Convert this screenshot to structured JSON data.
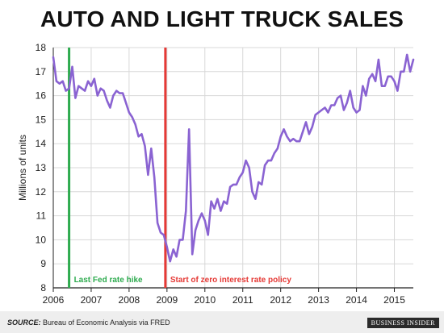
{
  "chart_data": {
    "type": "line",
    "title": "AUTO AND LIGHT TRUCK SALES",
    "xlabel": "",
    "ylabel": "Millions of units",
    "xlim": [
      2006.0,
      2015.5
    ],
    "ylim": [
      8,
      18
    ],
    "x_ticks": [
      "2006",
      "2007",
      "2008",
      "2009",
      "2010",
      "2011",
      "2012",
      "2013",
      "2014",
      "2015"
    ],
    "y_ticks": [
      "8",
      "9",
      "10",
      "11",
      "12",
      "13",
      "14",
      "15",
      "16",
      "17",
      "18"
    ],
    "grid": true,
    "series": [
      {
        "color": "#8a63d2",
        "x": [
          2006.0,
          2006.083,
          2006.167,
          2006.25,
          2006.333,
          2006.417,
          2006.5,
          2006.583,
          2006.667,
          2006.75,
          2006.833,
          2006.917,
          2007.0,
          2007.083,
          2007.167,
          2007.25,
          2007.333,
          2007.417,
          2007.5,
          2007.583,
          2007.667,
          2007.75,
          2007.833,
          2007.917,
          2008.0,
          2008.083,
          2008.167,
          2008.25,
          2008.333,
          2008.417,
          2008.5,
          2008.583,
          2008.667,
          2008.75,
          2008.833,
          2008.917,
          2009.0,
          2009.083,
          2009.167,
          2009.25,
          2009.333,
          2009.417,
          2009.5,
          2009.583,
          2009.667,
          2009.75,
          2009.833,
          2009.917,
          2010.0,
          2010.083,
          2010.167,
          2010.25,
          2010.333,
          2010.417,
          2010.5,
          2010.583,
          2010.667,
          2010.75,
          2010.833,
          2010.917,
          2011.0,
          2011.083,
          2011.167,
          2011.25,
          2011.333,
          2011.417,
          2011.5,
          2011.583,
          2011.667,
          2011.75,
          2011.833,
          2011.917,
          2012.0,
          2012.083,
          2012.167,
          2012.25,
          2012.333,
          2012.417,
          2012.5,
          2012.583,
          2012.667,
          2012.75,
          2012.833,
          2012.917,
          2013.0,
          2013.083,
          2013.167,
          2013.25,
          2013.333,
          2013.417,
          2013.5,
          2013.583,
          2013.667,
          2013.75,
          2013.833,
          2013.917,
          2014.0,
          2014.083,
          2014.167,
          2014.25,
          2014.333,
          2014.417,
          2014.5,
          2014.583,
          2014.667,
          2014.75,
          2014.833,
          2014.917,
          2015.0,
          2015.083,
          2015.167,
          2015.25,
          2015.333,
          2015.417,
          2015.5
        ],
        "values": [
          17.6,
          16.6,
          16.5,
          16.6,
          16.2,
          16.3,
          17.2,
          15.9,
          16.4,
          16.3,
          16.2,
          16.6,
          16.4,
          16.7,
          16.0,
          16.3,
          16.2,
          15.8,
          15.5,
          16.0,
          16.2,
          16.1,
          16.1,
          15.7,
          15.3,
          15.1,
          14.8,
          14.3,
          14.4,
          13.9,
          12.7,
          13.8,
          12.6,
          10.7,
          10.3,
          10.2,
          9.7,
          9.1,
          9.6,
          9.3,
          10.0,
          10.0,
          11.2,
          14.6,
          9.4,
          10.4,
          10.8,
          11.1,
          10.8,
          10.2,
          11.6,
          11.3,
          11.7,
          11.2,
          11.6,
          11.5,
          12.2,
          12.3,
          12.3,
          12.6,
          12.8,
          13.3,
          13.0,
          12.0,
          11.7,
          12.4,
          12.3,
          13.1,
          13.3,
          13.3,
          13.6,
          13.8,
          14.3,
          14.6,
          14.3,
          14.1,
          14.2,
          14.1,
          14.1,
          14.5,
          14.9,
          14.4,
          14.7,
          15.2,
          15.3,
          15.4,
          15.5,
          15.3,
          15.6,
          15.6,
          15.9,
          16.0,
          15.4,
          15.7,
          16.2,
          15.5,
          15.3,
          15.4,
          16.4,
          16.0,
          16.7,
          16.9,
          16.6,
          17.5,
          16.4,
          16.4,
          16.8,
          16.8,
          16.6,
          16.2,
          17.0,
          17.0,
          17.7,
          17.0,
          17.5
        ]
      }
    ],
    "annotations": [
      {
        "x": 2006.417,
        "label": "Last Fed rate hike",
        "color": "#2eab4f"
      },
      {
        "x": 2008.958,
        "label": "Start of zero interest rate policy",
        "color": "#e53935"
      }
    ],
    "axis_color": "#222222",
    "grid_color": "#d8d8d8"
  },
  "footer": {
    "source_label": "SOURCE:",
    "source_text": " Bureau of Economic Analysis via FRED",
    "brand": "BUSINESS INSIDER"
  }
}
